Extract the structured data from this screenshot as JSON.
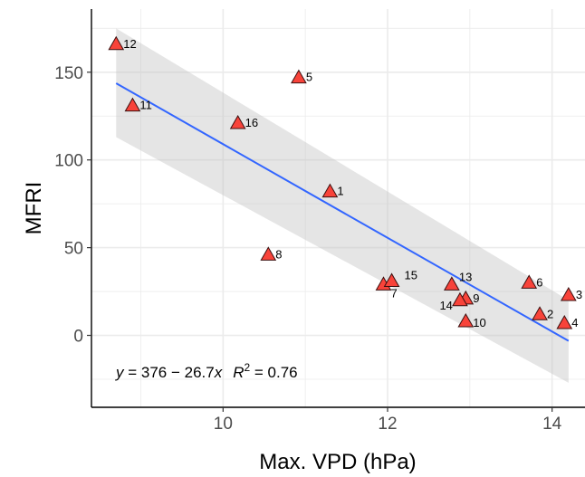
{
  "chart_data": {
    "type": "scatter",
    "xlabel": "Max. VPD (hPa)",
    "ylabel": "MFRI",
    "xlim": [
      8.4,
      14.4
    ],
    "ylim": [
      -41,
      186
    ],
    "x_ticks": [
      10,
      12,
      14
    ],
    "y_ticks": [
      0,
      50,
      100,
      150
    ],
    "grid": true,
    "colors": {
      "panel_bg": "#ffffff",
      "grid": "#ebebeb",
      "ribbon": "#bfbfbf",
      "line": "#3366ff",
      "marker_fill": "#f8433a",
      "marker_edge": "#3b1010"
    },
    "points": [
      {
        "id": "1",
        "x": 11.3,
        "y": 82
      },
      {
        "id": "2",
        "x": 13.85,
        "y": 12
      },
      {
        "id": "3",
        "x": 14.2,
        "y": 23
      },
      {
        "id": "4",
        "x": 14.15,
        "y": 7
      },
      {
        "id": "5",
        "x": 10.92,
        "y": 147
      },
      {
        "id": "6",
        "x": 13.72,
        "y": 30
      },
      {
        "id": "7",
        "x": 11.95,
        "y": 29
      },
      {
        "id": "8",
        "x": 10.55,
        "y": 46
      },
      {
        "id": "9",
        "x": 12.95,
        "y": 21
      },
      {
        "id": "10",
        "x": 12.95,
        "y": 8
      },
      {
        "id": "11",
        "x": 8.9,
        "y": 131
      },
      {
        "id": "12",
        "x": 8.7,
        "y": 166
      },
      {
        "id": "13",
        "x": 12.78,
        "y": 29
      },
      {
        "id": "14",
        "x": 12.88,
        "y": 20
      },
      {
        "id": "15",
        "x": 12.05,
        "y": 31
      },
      {
        "id": "16",
        "x": 10.18,
        "y": 121
      }
    ],
    "regression": {
      "intercept": 376,
      "slope": -26.7,
      "x_range": [
        8.7,
        14.2
      ],
      "ribbon_upper": [
        [
          8.7,
          175
        ],
        [
          14.2,
          20
        ]
      ],
      "ribbon_lower": [
        [
          8.7,
          113
        ],
        [
          14.2,
          -27
        ]
      ]
    },
    "annotation": {
      "eq_prefix": "y",
      "eq_mid": " = 376 − 26.7",
      "eq_x": "x",
      "r_label": "R",
      "r_sup": "2",
      "r_value": " = 0.76"
    }
  }
}
